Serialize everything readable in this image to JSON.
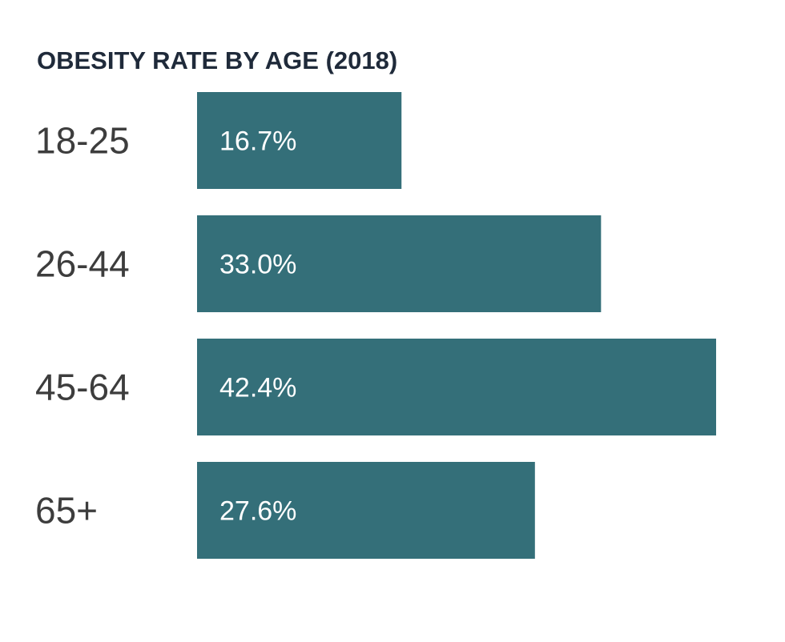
{
  "chart_data": {
    "type": "bar",
    "orientation": "horizontal",
    "title": "OBESITY RATE BY AGE (2018)",
    "categories": [
      "18-25",
      "26-44",
      "45-64",
      "65+"
    ],
    "values": [
      16.7,
      33.0,
      42.4,
      27.6
    ],
    "value_labels": [
      "16.7%",
      "33.0%",
      "42.4%",
      "27.6%"
    ],
    "unit": "%",
    "xlim": [
      0,
      42.4
    ],
    "xlabel": "",
    "ylabel": "",
    "grid": false,
    "legend": "none"
  },
  "colors": {
    "bar": "#346f79",
    "title": "#1f2a3a",
    "category_label": "#3d3d3d",
    "value_label": "#ffffff",
    "background": "#ffffff"
  }
}
